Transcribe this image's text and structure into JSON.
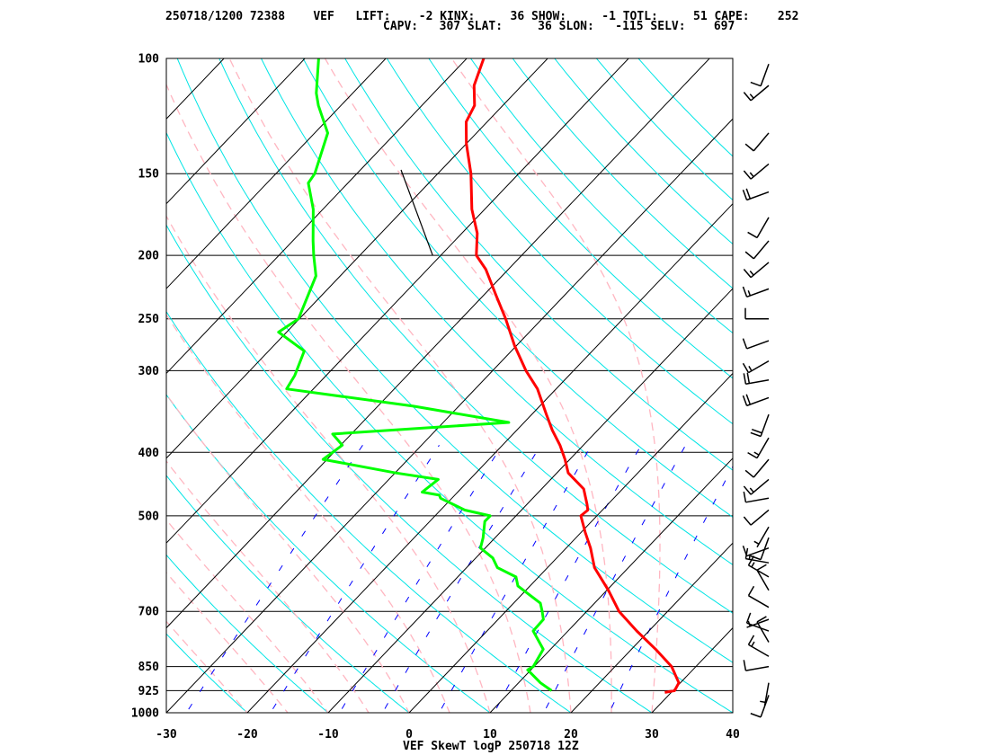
{
  "header": {
    "line1": "250718/1200 72388    VEF   LIFT:    -2 KINX:     36 SHOW:     -1 TOTL:     51 CAPE:    252",
    "line2": "CAPV:   307 SLAT:     36 SLON:   -115 SELV:    697"
  },
  "footer": "VEF SkewT logP 250718 12Z",
  "colors": {
    "temperature": "#ff0000",
    "dewpoint": "#00ff00",
    "isotherm": "#000000",
    "isobar": "#000000",
    "dry_adiabat": "#00e5e5",
    "moist_adiabat": "#ffb6c1",
    "mixing_ratio": "#0000ff",
    "barb": "#000000"
  },
  "chart_data": {
    "type": "skewt",
    "title": "VEF SkewT logP 250718 12Z",
    "xlim": [
      -30,
      40
    ],
    "ylim": [
      1000,
      100
    ],
    "x_ticks": [
      -30,
      -20,
      -10,
      0,
      10,
      20,
      30,
      40
    ],
    "y_ticks": [
      100,
      150,
      200,
      250,
      300,
      400,
      500,
      700,
      850,
      925,
      1000
    ],
    "y_scale": "log",
    "temperature": [
      {
        "p": 931,
        "t": 29.2
      },
      {
        "p": 925,
        "t": 30.2
      },
      {
        "p": 900,
        "t": 29.8
      },
      {
        "p": 850,
        "t": 27.0
      },
      {
        "p": 800,
        "t": 23.0
      },
      {
        "p": 750,
        "t": 18.5
      },
      {
        "p": 700,
        "t": 14.0
      },
      {
        "p": 650,
        "t": 10.2
      },
      {
        "p": 600,
        "t": 5.8
      },
      {
        "p": 560,
        "t": 3.0
      },
      {
        "p": 530,
        "t": 0.5
      },
      {
        "p": 500,
        "t": -2.0
      },
      {
        "p": 490,
        "t": -1.8
      },
      {
        "p": 480,
        "t": -2.6
      },
      {
        "p": 455,
        "t": -4.8
      },
      {
        "p": 430,
        "t": -8.6
      },
      {
        "p": 410,
        "t": -10.6
      },
      {
        "p": 390,
        "t": -12.9
      },
      {
        "p": 370,
        "t": -15.6
      },
      {
        "p": 350,
        "t": -18.2
      },
      {
        "p": 320,
        "t": -22.3
      },
      {
        "p": 300,
        "t": -25.9
      },
      {
        "p": 275,
        "t": -30.2
      },
      {
        "p": 250,
        "t": -34.5
      },
      {
        "p": 230,
        "t": -38.5
      },
      {
        "p": 210,
        "t": -42.8
      },
      {
        "p": 200,
        "t": -45.6
      },
      {
        "p": 185,
        "t": -48.1
      },
      {
        "p": 170,
        "t": -51.6
      },
      {
        "p": 150,
        "t": -55.9
      },
      {
        "p": 135,
        "t": -60.0
      },
      {
        "p": 125,
        "t": -62.6
      },
      {
        "p": 118,
        "t": -63.5
      },
      {
        "p": 110,
        "t": -65.9
      },
      {
        "p": 100,
        "t": -67.9
      }
    ],
    "dewpoint": [
      {
        "p": 925,
        "t": 15.0
      },
      {
        "p": 900,
        "t": 12.7
      },
      {
        "p": 860,
        "t": 9.6
      },
      {
        "p": 850,
        "t": 9.9
      },
      {
        "p": 800,
        "t": 9.1
      },
      {
        "p": 750,
        "t": 5.7
      },
      {
        "p": 720,
        "t": 5.6
      },
      {
        "p": 700,
        "t": 4.5
      },
      {
        "p": 680,
        "t": 3.3
      },
      {
        "p": 640,
        "t": -1.5
      },
      {
        "p": 620,
        "t": -2.8
      },
      {
        "p": 600,
        "t": -6.2
      },
      {
        "p": 580,
        "t": -7.9
      },
      {
        "p": 560,
        "t": -10.6
      },
      {
        "p": 540,
        "t": -11.5
      },
      {
        "p": 510,
        "t": -13.2
      },
      {
        "p": 500,
        "t": -13.2
      },
      {
        "p": 490,
        "t": -17.0
      },
      {
        "p": 470,
        "t": -21.4
      },
      {
        "p": 465,
        "t": -21.9
      },
      {
        "p": 460,
        "t": -24.4
      },
      {
        "p": 440,
        "t": -23.9
      },
      {
        "p": 430,
        "t": -29.9
      },
      {
        "p": 410,
        "t": -40.5
      },
      {
        "p": 390,
        "t": -39.8
      },
      {
        "p": 375,
        "t": -42.3
      },
      {
        "p": 360,
        "t": -21.9
      },
      {
        "p": 340,
        "t": -35.6
      },
      {
        "p": 320,
        "t": -53.3
      },
      {
        "p": 305,
        "t": -53.9
      },
      {
        "p": 280,
        "t": -55.6
      },
      {
        "p": 262,
        "t": -61.0
      },
      {
        "p": 250,
        "t": -60.1
      },
      {
        "p": 215,
        "t": -63.0
      },
      {
        "p": 200,
        "t": -65.7
      },
      {
        "p": 190,
        "t": -67.5
      },
      {
        "p": 170,
        "t": -71.2
      },
      {
        "p": 155,
        "t": -74.9
      },
      {
        "p": 150,
        "t": -75.2
      },
      {
        "p": 130,
        "t": -78.4
      },
      {
        "p": 118,
        "t": -82.8
      },
      {
        "p": 113,
        "t": -84.5
      },
      {
        "p": 100,
        "t": -88.3
      }
    ],
    "parcel": [
      {
        "p": 200,
        "t": -51.0
      },
      {
        "p": 148,
        "t": -65.0
      }
    ],
    "isotherms": [
      -120,
      -110,
      -100,
      -90,
      -80,
      -70,
      -60,
      -50,
      -40,
      -30,
      -20,
      -10,
      0,
      10,
      20,
      30,
      40
    ],
    "dry_adiabats_theta_c": [
      -20,
      -10,
      0,
      10,
      20,
      30,
      40,
      50,
      60,
      70,
      80,
      90,
      100,
      110,
      120,
      130,
      140,
      150,
      160
    ],
    "moist_adiabats_thetaw_c": [
      -20,
      -15,
      -10,
      -5,
      0,
      5,
      10,
      15,
      20,
      25,
      30
    ],
    "mixing_ratios_gkg": [
      0.4,
      1,
      2,
      3,
      5,
      8,
      12,
      20
    ],
    "wind_barbs": [
      {
        "p": 940,
        "dir": 200,
        "spd": 10
      },
      {
        "p": 900,
        "dir": 190,
        "spd": 5
      },
      {
        "p": 850,
        "dir": 260,
        "spd": 10
      },
      {
        "p": 820,
        "dir": 300,
        "spd": 15
      },
      {
        "p": 780,
        "dir": 330,
        "spd": 10
      },
      {
        "p": 750,
        "dir": 290,
        "spd": 10
      },
      {
        "p": 720,
        "dir": 250,
        "spd": 5
      },
      {
        "p": 690,
        "dir": 300,
        "spd": 10
      },
      {
        "p": 650,
        "dir": 330,
        "spd": 10
      },
      {
        "p": 620,
        "dir": 300,
        "spd": 15
      },
      {
        "p": 590,
        "dir": 280,
        "spd": 15
      },
      {
        "p": 560,
        "dir": 250,
        "spd": 10
      },
      {
        "p": 540,
        "dir": 200,
        "spd": 10
      },
      {
        "p": 520,
        "dir": 210,
        "spd": 5
      },
      {
        "p": 490,
        "dir": 230,
        "spd": 10
      },
      {
        "p": 470,
        "dir": 260,
        "spd": 10
      },
      {
        "p": 440,
        "dir": 230,
        "spd": 15
      },
      {
        "p": 410,
        "dir": 220,
        "spd": 10
      },
      {
        "p": 380,
        "dir": 210,
        "spd": 15
      },
      {
        "p": 350,
        "dir": 200,
        "spd": 20
      },
      {
        "p": 330,
        "dir": 250,
        "spd": 20
      },
      {
        "p": 310,
        "dir": 260,
        "spd": 20
      },
      {
        "p": 290,
        "dir": 240,
        "spd": 15
      },
      {
        "p": 270,
        "dir": 250,
        "spd": 10
      },
      {
        "p": 250,
        "dir": 270,
        "spd": 10
      },
      {
        "p": 225,
        "dir": 250,
        "spd": 15
      },
      {
        "p": 205,
        "dir": 230,
        "spd": 15
      },
      {
        "p": 190,
        "dir": 220,
        "spd": 10
      },
      {
        "p": 175,
        "dir": 210,
        "spd": 10
      },
      {
        "p": 160,
        "dir": 250,
        "spd": 20
      },
      {
        "p": 145,
        "dir": 230,
        "spd": 15
      },
      {
        "p": 130,
        "dir": 220,
        "spd": 10
      },
      {
        "p": 110,
        "dir": 230,
        "spd": 15
      },
      {
        "p": 102,
        "dir": 200,
        "spd": 10
      }
    ]
  }
}
